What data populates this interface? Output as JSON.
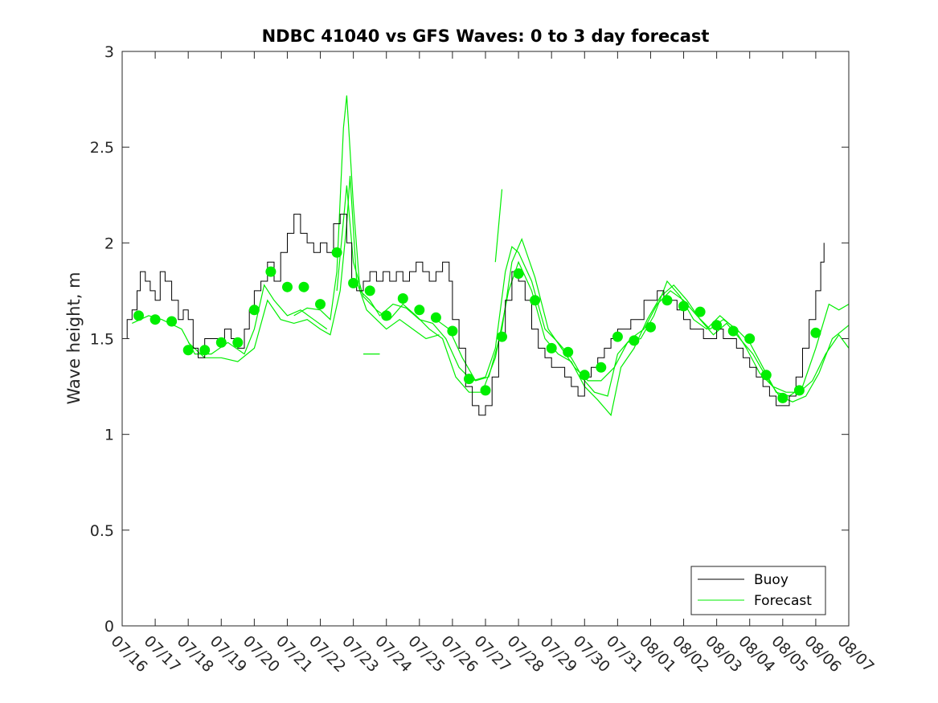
{
  "chart_data": {
    "type": "line",
    "title": "NDBC 41040 vs GFS Waves: 0 to 3 day forecast",
    "xlabel": "",
    "ylabel": "Wave height, m",
    "ylim": [
      0,
      3
    ],
    "yticks": [
      "0",
      "0.5",
      "1",
      "1.5",
      "2",
      "2.5",
      "3"
    ],
    "xlim": [
      "07/16",
      "08/07"
    ],
    "xticks": [
      "07/16",
      "07/17",
      "07/18",
      "07/19",
      "07/20",
      "07/21",
      "07/22",
      "07/23",
      "07/24",
      "07/25",
      "07/26",
      "07/27",
      "07/28",
      "07/29",
      "07/30",
      "07/31",
      "08/01",
      "08/02",
      "08/03",
      "08/04",
      "08/05",
      "08/06",
      "08/07"
    ],
    "grid": false,
    "legend_position": "bottom-right",
    "colors": {
      "buoy": "#000000",
      "forecast": "#00ee00"
    },
    "buoy": {
      "name": "Buoy",
      "points": [
        [
          0,
          1.5
        ],
        [
          0.15,
          1.6
        ],
        [
          0.3,
          1.65
        ],
        [
          0.45,
          1.75
        ],
        [
          0.55,
          1.85
        ],
        [
          0.7,
          1.8
        ],
        [
          0.85,
          1.75
        ],
        [
          1.0,
          1.7
        ],
        [
          1.15,
          1.85
        ],
        [
          1.3,
          1.8
        ],
        [
          1.5,
          1.7
        ],
        [
          1.7,
          1.6
        ],
        [
          1.85,
          1.65
        ],
        [
          2.0,
          1.6
        ],
        [
          2.15,
          1.45
        ],
        [
          2.3,
          1.4
        ],
        [
          2.5,
          1.5
        ],
        [
          2.7,
          1.5
        ],
        [
          2.9,
          1.5
        ],
        [
          3.1,
          1.55
        ],
        [
          3.3,
          1.5
        ],
        [
          3.5,
          1.45
        ],
        [
          3.7,
          1.55
        ],
        [
          3.85,
          1.65
        ],
        [
          4.0,
          1.75
        ],
        [
          4.2,
          1.8
        ],
        [
          4.4,
          1.9
        ],
        [
          4.6,
          1.8
        ],
        [
          4.8,
          1.95
        ],
        [
          5.0,
          2.05
        ],
        [
          5.2,
          2.15
        ],
        [
          5.4,
          2.05
        ],
        [
          5.6,
          2.0
        ],
        [
          5.8,
          1.95
        ],
        [
          6.0,
          2.0
        ],
        [
          6.2,
          1.95
        ],
        [
          6.4,
          2.1
        ],
        [
          6.6,
          2.15
        ],
        [
          6.8,
          2.0
        ],
        [
          6.95,
          1.8
        ],
        [
          7.1,
          1.75
        ],
        [
          7.3,
          1.8
        ],
        [
          7.5,
          1.85
        ],
        [
          7.7,
          1.8
        ],
        [
          7.9,
          1.85
        ],
        [
          8.1,
          1.8
        ],
        [
          8.3,
          1.85
        ],
        [
          8.5,
          1.8
        ],
        [
          8.7,
          1.85
        ],
        [
          8.9,
          1.9
        ],
        [
          9.1,
          1.85
        ],
        [
          9.3,
          1.8
        ],
        [
          9.5,
          1.85
        ],
        [
          9.7,
          1.9
        ],
        [
          9.9,
          1.8
        ],
        [
          10.0,
          1.6
        ],
        [
          10.2,
          1.45
        ],
        [
          10.4,
          1.25
        ],
        [
          10.6,
          1.15
        ],
        [
          10.8,
          1.1
        ],
        [
          11.0,
          1.15
        ],
        [
          11.2,
          1.3
        ],
        [
          11.4,
          1.5
        ],
        [
          11.6,
          1.7
        ],
        [
          11.8,
          1.85
        ],
        [
          12.0,
          1.8
        ],
        [
          12.2,
          1.7
        ],
        [
          12.4,
          1.55
        ],
        [
          12.6,
          1.45
        ],
        [
          12.8,
          1.4
        ],
        [
          13.0,
          1.35
        ],
        [
          13.2,
          1.35
        ],
        [
          13.4,
          1.3
        ],
        [
          13.6,
          1.25
        ],
        [
          13.8,
          1.2
        ],
        [
          14.0,
          1.3
        ],
        [
          14.2,
          1.35
        ],
        [
          14.4,
          1.4
        ],
        [
          14.6,
          1.45
        ],
        [
          14.8,
          1.5
        ],
        [
          15.0,
          1.55
        ],
        [
          15.2,
          1.55
        ],
        [
          15.4,
          1.6
        ],
        [
          15.6,
          1.6
        ],
        [
          15.8,
          1.7
        ],
        [
          16.0,
          1.7
        ],
        [
          16.2,
          1.75
        ],
        [
          16.4,
          1.7
        ],
        [
          16.6,
          1.7
        ],
        [
          16.8,
          1.65
        ],
        [
          17.0,
          1.6
        ],
        [
          17.2,
          1.55
        ],
        [
          17.4,
          1.55
        ],
        [
          17.6,
          1.5
        ],
        [
          17.8,
          1.5
        ],
        [
          18.0,
          1.55
        ],
        [
          18.2,
          1.5
        ],
        [
          18.4,
          1.5
        ],
        [
          18.6,
          1.45
        ],
        [
          18.8,
          1.4
        ],
        [
          19.0,
          1.35
        ],
        [
          19.2,
          1.3
        ],
        [
          19.4,
          1.25
        ],
        [
          19.6,
          1.2
        ],
        [
          19.8,
          1.15
        ],
        [
          20.0,
          1.15
        ],
        [
          20.2,
          1.2
        ],
        [
          20.4,
          1.3
        ],
        [
          20.6,
          1.45
        ],
        [
          20.8,
          1.6
        ],
        [
          21.0,
          1.75
        ],
        [
          21.15,
          1.9
        ],
        [
          21.25,
          2.0
        ]
      ]
    },
    "forecast_markers": [
      [
        0.5,
        1.62
      ],
      [
        1.0,
        1.6
      ],
      [
        1.5,
        1.59
      ],
      [
        2.0,
        1.44
      ],
      [
        2.5,
        1.44
      ],
      [
        3.0,
        1.48
      ],
      [
        3.5,
        1.48
      ],
      [
        4.0,
        1.65
      ],
      [
        4.5,
        1.85
      ],
      [
        5.0,
        1.77
      ],
      [
        5.5,
        1.77
      ],
      [
        6.0,
        1.68
      ],
      [
        6.5,
        1.95
      ],
      [
        7.0,
        1.79
      ],
      [
        7.5,
        1.75
      ],
      [
        8.0,
        1.62
      ],
      [
        8.5,
        1.71
      ],
      [
        9.0,
        1.65
      ],
      [
        9.5,
        1.61
      ],
      [
        10.0,
        1.54
      ],
      [
        10.5,
        1.29
      ],
      [
        11.0,
        1.23
      ],
      [
        11.5,
        1.51
      ],
      [
        12.0,
        1.84
      ],
      [
        12.5,
        1.7
      ],
      [
        13.0,
        1.45
      ],
      [
        13.5,
        1.43
      ],
      [
        14.0,
        1.31
      ],
      [
        14.5,
        1.35
      ],
      [
        15.0,
        1.51
      ],
      [
        15.5,
        1.49
      ],
      [
        16.0,
        1.56
      ],
      [
        16.5,
        1.7
      ],
      [
        17.0,
        1.67
      ],
      [
        17.5,
        1.64
      ],
      [
        18.0,
        1.57
      ],
      [
        18.5,
        1.54
      ],
      [
        19.0,
        1.5
      ],
      [
        19.5,
        1.31
      ],
      [
        20.0,
        1.19
      ],
      [
        20.5,
        1.23
      ],
      [
        21.0,
        1.53
      ]
    ],
    "forecast_series": [
      {
        "points": [
          [
            0.3,
            1.58
          ],
          [
            0.8,
            1.62
          ],
          [
            1.2,
            1.6
          ],
          [
            1.8,
            1.55
          ],
          [
            2.2,
            1.42
          ],
          [
            2.7,
            1.42
          ],
          [
            3.2,
            1.48
          ],
          [
            3.7,
            1.42
          ],
          [
            4.0,
            1.55
          ],
          [
            4.3,
            1.78
          ],
          [
            4.6,
            1.7
          ],
          [
            5.0,
            1.62
          ],
          [
            5.4,
            1.65
          ],
          [
            5.8,
            1.6
          ],
          [
            6.2,
            1.55
          ]
        ]
      },
      {
        "points": [
          [
            2.0,
            1.48
          ],
          [
            2.5,
            1.4
          ],
          [
            3.0,
            1.4
          ],
          [
            3.5,
            1.38
          ],
          [
            4.0,
            1.45
          ],
          [
            4.4,
            1.7
          ],
          [
            4.8,
            1.6
          ],
          [
            5.2,
            1.58
          ],
          [
            5.6,
            1.6
          ],
          [
            6.0,
            1.55
          ],
          [
            6.3,
            1.52
          ],
          [
            6.6,
            1.75
          ],
          [
            6.8,
            2.1
          ],
          [
            6.9,
            2.35
          ],
          [
            7.1,
            1.8
          ],
          [
            7.4,
            1.65
          ],
          [
            7.7,
            1.6
          ],
          [
            8.0,
            1.55
          ],
          [
            8.4,
            1.6
          ],
          [
            8.8,
            1.55
          ],
          [
            9.2,
            1.5
          ],
          [
            9.6,
            1.52
          ]
        ]
      },
      {
        "points": [
          [
            5.2,
            1.62
          ],
          [
            5.6,
            1.66
          ],
          [
            6.0,
            1.65
          ],
          [
            6.3,
            1.6
          ],
          [
            6.5,
            1.85
          ],
          [
            6.7,
            2.6
          ],
          [
            6.8,
            2.77
          ],
          [
            7.0,
            2.2
          ],
          [
            7.2,
            1.75
          ],
          [
            7.5,
            1.7
          ],
          [
            7.8,
            1.62
          ],
          [
            8.2,
            1.68
          ],
          [
            8.6,
            1.66
          ],
          [
            9.0,
            1.6
          ],
          [
            9.4,
            1.58
          ],
          [
            9.8,
            1.5
          ],
          [
            10.2,
            1.35
          ],
          [
            10.6,
            1.28
          ],
          [
            11.0,
            1.3
          ],
          [
            11.3,
            1.45
          ],
          [
            11.6,
            1.85
          ],
          [
            11.8,
            1.98
          ],
          [
            12.0,
            1.95
          ],
          [
            12.4,
            1.8
          ],
          [
            12.8,
            1.55
          ],
          [
            13.2,
            1.48
          ],
          [
            13.6,
            1.4
          ],
          [
            14.0,
            1.28
          ],
          [
            14.3,
            1.22
          ],
          [
            14.7,
            1.2
          ],
          [
            15.0,
            1.42
          ],
          [
            15.4,
            1.5
          ],
          [
            15.8,
            1.55
          ],
          [
            16.2,
            1.68
          ],
          [
            16.6,
            1.75
          ],
          [
            17.0,
            1.7
          ],
          [
            17.4,
            1.62
          ],
          [
            17.8,
            1.55
          ],
          [
            18.2,
            1.6
          ],
          [
            18.6,
            1.55
          ],
          [
            19.0,
            1.48
          ],
          [
            19.4,
            1.35
          ],
          [
            19.8,
            1.22
          ],
          [
            20.2,
            1.2
          ],
          [
            20.6,
            1.25
          ],
          [
            21.0,
            1.45
          ],
          [
            21.4,
            1.68
          ],
          [
            21.7,
            1.65
          ],
          [
            22.0,
            1.68
          ]
        ]
      },
      {
        "points": [
          [
            6.5,
            1.75
          ],
          [
            6.8,
            2.3
          ],
          [
            7.0,
            1.9
          ],
          [
            7.3,
            1.72
          ],
          [
            7.7,
            1.65
          ],
          [
            8.1,
            1.6
          ],
          [
            8.5,
            1.68
          ],
          [
            8.9,
            1.62
          ],
          [
            9.3,
            1.55
          ],
          [
            9.7,
            1.5
          ],
          [
            10.1,
            1.3
          ],
          [
            10.5,
            1.22
          ],
          [
            10.9,
            1.22
          ],
          [
            11.3,
            1.4
          ],
          [
            11.7,
            1.75
          ],
          [
            12.0,
            1.9
          ],
          [
            12.4,
            1.75
          ],
          [
            12.8,
            1.5
          ],
          [
            13.2,
            1.42
          ],
          [
            13.6,
            1.38
          ],
          [
            14.0,
            1.25
          ],
          [
            14.4,
            1.18
          ],
          [
            14.8,
            1.1
          ],
          [
            15.1,
            1.35
          ],
          [
            15.5,
            1.45
          ],
          [
            15.9,
            1.6
          ],
          [
            16.3,
            1.72
          ],
          [
            16.7,
            1.78
          ],
          [
            17.1,
            1.7
          ],
          [
            17.5,
            1.6
          ],
          [
            17.9,
            1.52
          ],
          [
            18.3,
            1.58
          ],
          [
            18.7,
            1.5
          ],
          [
            19.1,
            1.42
          ],
          [
            19.5,
            1.3
          ],
          [
            19.9,
            1.2
          ],
          [
            20.3,
            1.17
          ],
          [
            20.7,
            1.2
          ],
          [
            21.1,
            1.32
          ],
          [
            21.5,
            1.5
          ],
          [
            22.0,
            1.57
          ]
        ]
      },
      {
        "points": [
          [
            9.5,
            1.6
          ],
          [
            9.9,
            1.55
          ],
          [
            10.3,
            1.4
          ],
          [
            10.7,
            1.28
          ],
          [
            11.1,
            1.3
          ],
          [
            11.5,
            1.55
          ],
          [
            11.8,
            1.9
          ],
          [
            12.1,
            2.02
          ],
          [
            12.5,
            1.82
          ],
          [
            12.9,
            1.55
          ],
          [
            13.3,
            1.45
          ],
          [
            13.7,
            1.35
          ],
          [
            14.1,
            1.28
          ],
          [
            14.5,
            1.28
          ],
          [
            14.9,
            1.35
          ],
          [
            15.3,
            1.48
          ],
          [
            15.7,
            1.5
          ],
          [
            16.1,
            1.62
          ],
          [
            16.5,
            1.8
          ],
          [
            16.9,
            1.72
          ],
          [
            17.3,
            1.6
          ],
          [
            17.7,
            1.55
          ],
          [
            18.1,
            1.62
          ],
          [
            18.5,
            1.56
          ],
          [
            18.9,
            1.45
          ],
          [
            19.3,
            1.32
          ],
          [
            19.7,
            1.25
          ],
          [
            20.1,
            1.22
          ],
          [
            20.5,
            1.22
          ],
          [
            20.9,
            1.28
          ],
          [
            21.3,
            1.42
          ],
          [
            21.7,
            1.52
          ],
          [
            22.0,
            1.45
          ]
        ]
      },
      {
        "points": [
          [
            7.3,
            1.42
          ],
          [
            7.8,
            1.42
          ]
        ]
      },
      {
        "points": [
          [
            11.3,
            1.9
          ],
          [
            11.5,
            2.28
          ]
        ]
      }
    ]
  },
  "legend": {
    "buoy_label": "Buoy",
    "forecast_label": "Forecast"
  }
}
